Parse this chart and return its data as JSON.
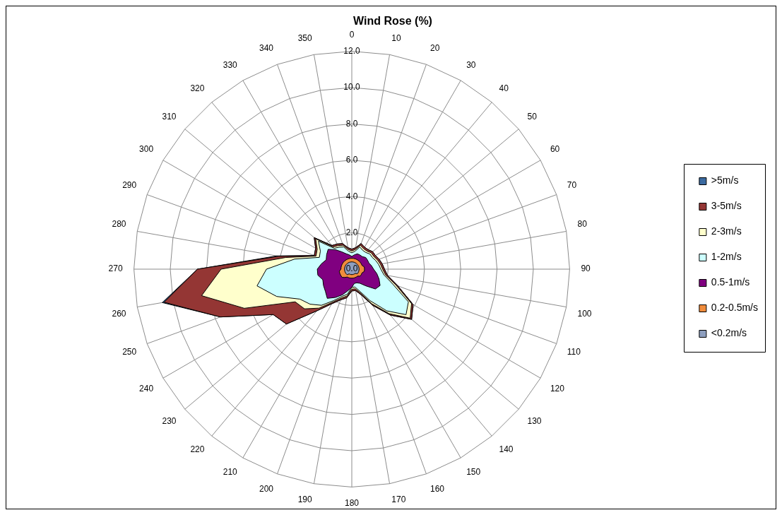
{
  "chart_data": {
    "type": "radar",
    "title": "Wind Rose (%)",
    "categories": [
      "0",
      "10",
      "20",
      "30",
      "40",
      "50",
      "60",
      "70",
      "80",
      "90",
      "100",
      "110",
      "120",
      "130",
      "140",
      "150",
      "160",
      "170",
      "180",
      "190",
      "200",
      "210",
      "220",
      "230",
      "240",
      "250",
      "260",
      "270",
      "280",
      "290",
      "300",
      "310",
      "320",
      "330",
      "340",
      "350"
    ],
    "series": [
      {
        "name": ">5m/s",
        "color": "#3b6aa0",
        "values": [
          1.1,
          1.2,
          1.5,
          1.4,
          1.4,
          1.5,
          1.5,
          1.6,
          1.7,
          1.8,
          2.0,
          2.7,
          3.9,
          4.3,
          3.3,
          2.3,
          1.5,
          1.2,
          1.2,
          1.6,
          1.8,
          2.2,
          3.0,
          4.7,
          5.0,
          7.7,
          10.6,
          8.5,
          4.2,
          2.2,
          2.3,
          2.7,
          1.7,
          1.6,
          1.5,
          1.2
        ]
      },
      {
        "name": "3-5m/s",
        "color": "#943634",
        "values": [
          1.1,
          1.2,
          1.5,
          1.4,
          1.4,
          1.5,
          1.5,
          1.6,
          1.7,
          1.8,
          2.0,
          2.7,
          3.9,
          4.3,
          3.3,
          2.3,
          1.5,
          1.2,
          1.2,
          1.6,
          1.8,
          2.2,
          3.0,
          4.7,
          5.0,
          7.7,
          10.5,
          8.5,
          4.1,
          2.2,
          2.3,
          2.7,
          1.7,
          1.6,
          1.5,
          1.2
        ]
      },
      {
        "name": "2-3m/s",
        "color": "#ffffcc",
        "values": [
          1.0,
          1.1,
          1.4,
          1.3,
          1.3,
          1.4,
          1.4,
          1.5,
          1.6,
          1.7,
          1.9,
          2.6,
          3.8,
          4.2,
          3.2,
          2.2,
          1.4,
          1.1,
          1.1,
          1.5,
          1.7,
          2.1,
          2.8,
          3.4,
          3.6,
          6.3,
          8.4,
          7.2,
          3.7,
          2.1,
          2.2,
          2.6,
          1.6,
          1.5,
          1.4,
          1.1
        ]
      },
      {
        "name": "1-2m/s",
        "color": "#ccffff",
        "values": [
          0.9,
          1.0,
          1.3,
          1.2,
          1.2,
          1.3,
          1.3,
          1.4,
          1.5,
          1.6,
          1.8,
          2.4,
          3.6,
          3.9,
          3.0,
          2.0,
          1.3,
          1.0,
          1.0,
          1.4,
          1.6,
          2.0,
          2.6,
          3.0,
          3.3,
          4.4,
          5.3,
          4.7,
          3.2,
          1.9,
          2.0,
          2.4,
          1.5,
          1.4,
          1.3,
          1.0
        ]
      },
      {
        "name": "0.5-1m/s",
        "color": "#800080",
        "values": [
          0.7,
          0.8,
          0.9,
          0.9,
          0.9,
          1.0,
          1.0,
          1.0,
          1.1,
          1.2,
          1.4,
          1.6,
          1.8,
          1.7,
          1.2,
          0.9,
          0.8,
          0.8,
          1.0,
          1.2,
          1.5,
          1.8,
          2.1,
          1.9,
          1.8,
          1.7,
          1.9,
          1.9,
          1.7,
          1.5,
          1.6,
          1.7,
          1.4,
          1.1,
          0.9,
          0.8
        ]
      },
      {
        "name": "0.2-0.5m/s",
        "color": "#f08c3c",
        "values": [
          0.6,
          0.6,
          0.6,
          0.6,
          0.6,
          0.6,
          0.6,
          0.6,
          0.7,
          0.7,
          0.7,
          0.6,
          0.6,
          0.6,
          0.5,
          0.5,
          0.5,
          0.5,
          0.5,
          0.5,
          0.5,
          0.5,
          0.6,
          0.7,
          0.7,
          0.7,
          0.7,
          0.6,
          0.6,
          0.6,
          0.6,
          0.6,
          0.6,
          0.6,
          0.6,
          0.6
        ]
      },
      {
        "name": "<0.2m/s",
        "color": "#8e9fbf",
        "values": [
          0.4,
          0.4,
          0.4,
          0.4,
          0.4,
          0.4,
          0.4,
          0.4,
          0.4,
          0.4,
          0.4,
          0.4,
          0.4,
          0.4,
          0.3,
          0.3,
          0.3,
          0.3,
          0.3,
          0.3,
          0.3,
          0.3,
          0.4,
          0.4,
          0.4,
          0.4,
          0.4,
          0.4,
          0.4,
          0.4,
          0.4,
          0.4,
          0.4,
          0.4,
          0.4,
          0.4
        ]
      }
    ],
    "ylim": [
      0,
      12
    ],
    "yticks": [
      {
        "value": 0,
        "label": "0.0"
      },
      {
        "value": 2,
        "label": "2.0"
      },
      {
        "value": 4,
        "label": "4.0"
      },
      {
        "value": 6,
        "label": "6.0"
      },
      {
        "value": 8,
        "label": "8.0"
      },
      {
        "value": 10,
        "label": "10.0"
      },
      {
        "value": 12,
        "label": "12.0"
      }
    ],
    "grid": true,
    "legend": "right",
    "marker": "none"
  }
}
